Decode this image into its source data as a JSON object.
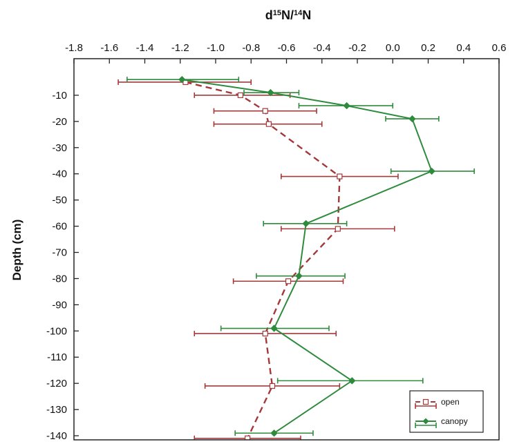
{
  "chart_data": {
    "type": "line",
    "title": "",
    "xlabel": {
      "prefix": "d",
      "sup1": "15",
      "mid": "N/",
      "sup2": "14",
      "suffix": "N"
    },
    "ylabel": "Depth (cm)",
    "xlim": [
      -1.8,
      0.6
    ],
    "ylim": [
      -145,
      0
    ],
    "x_ticks": [
      "-1.8",
      "-1.6",
      "-1.4",
      "-1.2",
      "-1.0",
      "-0.8",
      "-0.6",
      "-0.4",
      "-0.2",
      "0.0",
      "0.2",
      "0.4",
      "0.6"
    ],
    "x_tick_values": [
      -1.8,
      -1.6,
      -1.4,
      -1.2,
      -1.0,
      -0.8,
      -0.6,
      -0.4,
      -0.2,
      0.0,
      0.2,
      0.4,
      0.6
    ],
    "y_ticks": [
      "-10",
      "-20",
      "-30",
      "-40",
      "-50",
      "-60",
      "-70",
      "-80",
      "-90",
      "-100",
      "-110",
      "-120",
      "-130",
      "-140"
    ],
    "y_tick_values": [
      -10,
      -20,
      -30,
      -40,
      -50,
      -60,
      -70,
      -80,
      -90,
      -100,
      -110,
      -120,
      -130,
      -140
    ],
    "x_axis_position": "top",
    "grid": false,
    "legend_position": "bottom-right",
    "series": [
      {
        "name": "open",
        "color": "#a33838",
        "line_style": "dashed",
        "marker": "open-square",
        "points": [
          {
            "x": -1.17,
            "y": -5,
            "xerr_low": -1.55,
            "xerr_high": -0.8
          },
          {
            "x": -0.86,
            "y": -10,
            "xerr_low": -1.12,
            "xerr_high": -0.58
          },
          {
            "x": -0.72,
            "y": -16,
            "xerr_low": -1.01,
            "xerr_high": -0.43
          },
          {
            "x": -0.7,
            "y": -21,
            "xerr_low": -1.01,
            "xerr_high": -0.4
          },
          {
            "x": -0.3,
            "y": -41,
            "xerr_low": -0.63,
            "xerr_high": 0.03
          },
          {
            "x": -0.31,
            "y": -61,
            "xerr_low": -0.63,
            "xerr_high": 0.01
          },
          {
            "x": -0.59,
            "y": -81,
            "xerr_low": -0.9,
            "xerr_high": -0.28
          },
          {
            "x": -0.72,
            "y": -101,
            "xerr_low": -1.12,
            "xerr_high": -0.32
          },
          {
            "x": -0.68,
            "y": -121,
            "xerr_low": -1.06,
            "xerr_high": -0.3
          },
          {
            "x": -0.82,
            "y": -141,
            "xerr_low": -1.12,
            "xerr_high": -0.52
          }
        ]
      },
      {
        "name": "canopy",
        "color": "#2e8a3c",
        "line_style": "solid",
        "marker": "filled-diamond",
        "points": [
          {
            "x": -1.19,
            "y": -4,
            "xerr_low": -1.5,
            "xerr_high": -0.87
          },
          {
            "x": -0.69,
            "y": -9,
            "xerr_low": -0.84,
            "xerr_high": -0.53
          },
          {
            "x": -0.26,
            "y": -14,
            "xerr_low": -0.53,
            "xerr_high": 0.0
          },
          {
            "x": 0.11,
            "y": -19,
            "xerr_low": -0.04,
            "xerr_high": 0.26
          },
          {
            "x": 0.22,
            "y": -39,
            "xerr_low": -0.01,
            "xerr_high": 0.46
          },
          {
            "x": -0.49,
            "y": -59,
            "xerr_low": -0.73,
            "xerr_high": -0.26
          },
          {
            "x": -0.53,
            "y": -79,
            "xerr_low": -0.77,
            "xerr_high": -0.27
          },
          {
            "x": -0.67,
            "y": -99,
            "xerr_low": -0.97,
            "xerr_high": -0.36
          },
          {
            "x": -0.23,
            "y": -119,
            "xerr_low": -0.65,
            "xerr_high": 0.17
          },
          {
            "x": -0.67,
            "y": -139,
            "xerr_low": -0.89,
            "xerr_high": -0.45
          }
        ]
      }
    ]
  }
}
